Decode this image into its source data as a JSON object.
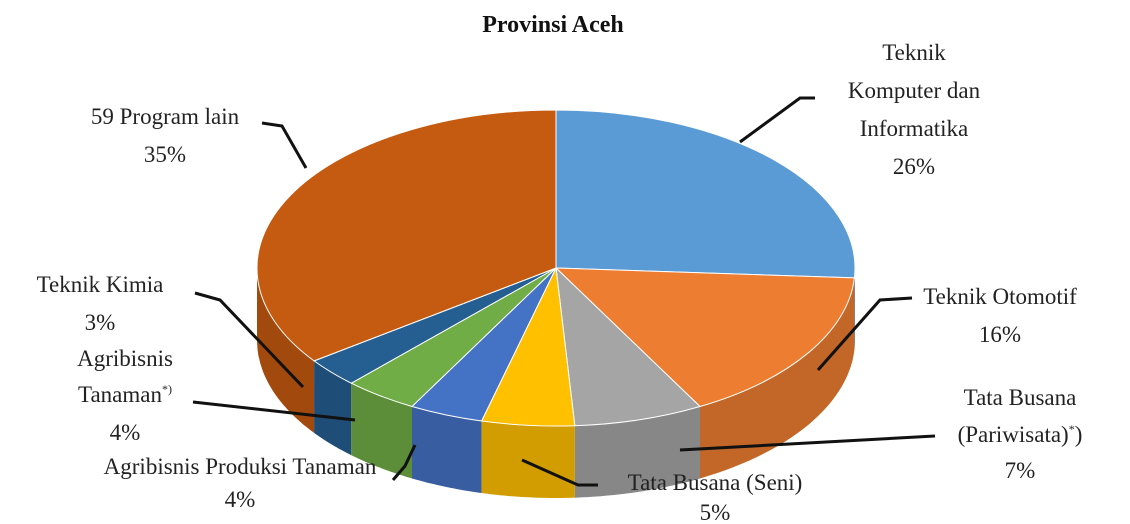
{
  "chart_data": {
    "type": "pie",
    "style": "3d",
    "title": "Provinsi Aceh",
    "slices": [
      {
        "label": "Teknik Komputer dan Informatika",
        "value": 26,
        "percent_label": "26%",
        "color": "#5b9bd5"
      },
      {
        "label": "Teknik Otomotif",
        "value": 16,
        "percent_label": "16%",
        "color": "#ed7d31"
      },
      {
        "label": "Tata Busana (Pariwisata)*)",
        "value": 7,
        "percent_label": "7%",
        "color": "#a5a5a5"
      },
      {
        "label": "Tata Busana (Seni)",
        "value": 5,
        "percent_label": "5%",
        "color": "#ffc000"
      },
      {
        "label": "Agribisnis Produksi Tanaman",
        "value": 4,
        "percent_label": "4%",
        "color": "#4472c4"
      },
      {
        "label": "Agribisnis Tanaman*)",
        "value": 4,
        "percent_label": "4%",
        "color": "#70ad47"
      },
      {
        "label": "Teknik Kimia",
        "value": 3,
        "percent_label": "3%",
        "color": "#255e91"
      },
      {
        "label": "59 Program lain",
        "value": 35,
        "percent_label": "35%",
        "color": "#c55a11"
      }
    ]
  }
}
